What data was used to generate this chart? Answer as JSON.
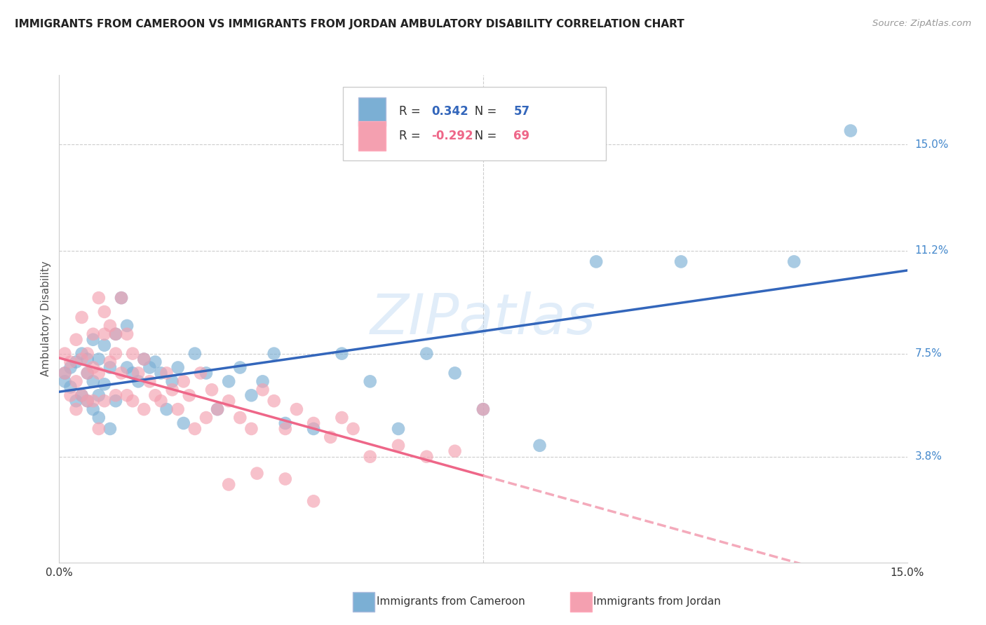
{
  "title": "IMMIGRANTS FROM CAMEROON VS IMMIGRANTS FROM JORDAN AMBULATORY DISABILITY CORRELATION CHART",
  "source": "Source: ZipAtlas.com",
  "ylabel": "Ambulatory Disability",
  "xlim": [
    0.0,
    0.15
  ],
  "ylim": [
    0.0,
    0.175
  ],
  "cameroon_color": "#7BAFD4",
  "jordan_color": "#F4A0B0",
  "line_cameroon": "#3366BB",
  "line_jordan_solid": "#EE6688",
  "line_jordan_dash": "#F4AABB",
  "R_cameroon": 0.342,
  "N_cameroon": 57,
  "R_jordan": -0.292,
  "N_jordan": 69,
  "watermark": "ZIPatlas",
  "background_color": "#FFFFFF",
  "grid_color": "#CCCCCC",
  "ytick_labels": [
    "15.0%",
    "11.2%",
    "7.5%",
    "3.8%"
  ],
  "ytick_values": [
    0.15,
    0.112,
    0.075,
    0.038
  ],
  "xtick_labels": [
    "0.0%",
    "15.0%"
  ],
  "xtick_values": [
    0.0,
    0.15
  ],
  "cam_x": [
    0.001,
    0.001,
    0.002,
    0.002,
    0.003,
    0.003,
    0.004,
    0.004,
    0.005,
    0.005,
    0.005,
    0.006,
    0.006,
    0.006,
    0.007,
    0.007,
    0.007,
    0.008,
    0.008,
    0.009,
    0.009,
    0.01,
    0.01,
    0.011,
    0.012,
    0.012,
    0.013,
    0.014,
    0.015,
    0.016,
    0.017,
    0.018,
    0.019,
    0.02,
    0.021,
    0.022,
    0.024,
    0.026,
    0.028,
    0.03,
    0.032,
    0.034,
    0.036,
    0.038,
    0.04,
    0.045,
    0.05,
    0.055,
    0.06,
    0.065,
    0.07,
    0.075,
    0.085,
    0.095,
    0.11,
    0.13,
    0.14
  ],
  "cam_y": [
    0.065,
    0.068,
    0.07,
    0.063,
    0.072,
    0.058,
    0.075,
    0.06,
    0.073,
    0.058,
    0.068,
    0.08,
    0.065,
    0.055,
    0.073,
    0.06,
    0.052,
    0.078,
    0.064,
    0.07,
    0.048,
    0.082,
    0.058,
    0.095,
    0.085,
    0.07,
    0.068,
    0.065,
    0.073,
    0.07,
    0.072,
    0.068,
    0.055,
    0.065,
    0.07,
    0.05,
    0.075,
    0.068,
    0.055,
    0.065,
    0.07,
    0.06,
    0.065,
    0.075,
    0.05,
    0.048,
    0.075,
    0.065,
    0.048,
    0.075,
    0.068,
    0.055,
    0.042,
    0.108,
    0.108,
    0.108,
    0.155
  ],
  "jor_x": [
    0.001,
    0.001,
    0.002,
    0.002,
    0.003,
    0.003,
    0.003,
    0.004,
    0.004,
    0.004,
    0.005,
    0.005,
    0.005,
    0.006,
    0.006,
    0.006,
    0.007,
    0.007,
    0.007,
    0.008,
    0.008,
    0.008,
    0.009,
    0.009,
    0.01,
    0.01,
    0.01,
    0.011,
    0.011,
    0.012,
    0.012,
    0.013,
    0.013,
    0.014,
    0.015,
    0.015,
    0.016,
    0.017,
    0.018,
    0.019,
    0.02,
    0.021,
    0.022,
    0.023,
    0.024,
    0.025,
    0.026,
    0.027,
    0.028,
    0.03,
    0.032,
    0.034,
    0.036,
    0.038,
    0.04,
    0.042,
    0.045,
    0.048,
    0.05,
    0.052,
    0.055,
    0.06,
    0.065,
    0.07,
    0.075,
    0.03,
    0.035,
    0.04,
    0.045
  ],
  "jor_y": [
    0.068,
    0.075,
    0.072,
    0.06,
    0.08,
    0.065,
    0.055,
    0.073,
    0.06,
    0.088,
    0.075,
    0.058,
    0.068,
    0.082,
    0.058,
    0.07,
    0.095,
    0.068,
    0.048,
    0.082,
    0.058,
    0.09,
    0.085,
    0.072,
    0.082,
    0.06,
    0.075,
    0.095,
    0.068,
    0.082,
    0.06,
    0.075,
    0.058,
    0.068,
    0.073,
    0.055,
    0.065,
    0.06,
    0.058,
    0.068,
    0.062,
    0.055,
    0.065,
    0.06,
    0.048,
    0.068,
    0.052,
    0.062,
    0.055,
    0.058,
    0.052,
    0.048,
    0.062,
    0.058,
    0.048,
    0.055,
    0.05,
    0.045,
    0.052,
    0.048,
    0.038,
    0.042,
    0.038,
    0.04,
    0.055,
    0.028,
    0.032,
    0.03,
    0.022
  ]
}
